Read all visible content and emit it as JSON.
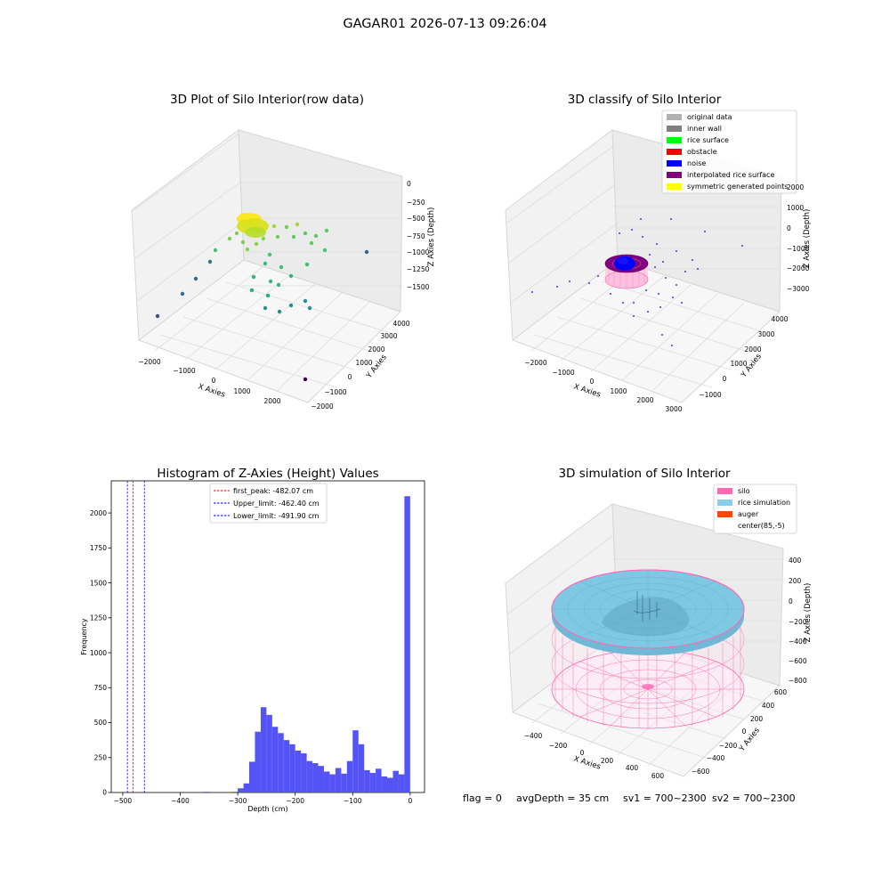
{
  "figure": {
    "suptitle": "GAGAR01 2026-07-13 09:26:04",
    "status": {
      "flag": "flag = 0",
      "avg_depth": "avgDepth = 35 cm",
      "sv1": "sv1 = 700~2300",
      "sv2": "sv2 = 700~2300"
    }
  },
  "chart_data": [
    {
      "id": "raw",
      "type": "scatter",
      "title": "3D Plot of Silo Interior(row data)",
      "xlabel": "X Axies",
      "ylabel": "Y Axies",
      "zlabel": "Z Axies (Depth)",
      "x_ticks": [
        "−2000",
        "−1000",
        "0",
        "1000",
        "2000"
      ],
      "y_ticks": [
        "−2000",
        "−1000",
        "0",
        "1000",
        "2000",
        "3000",
        "4000"
      ],
      "z_ticks": [
        "0",
        "−250",
        "−500",
        "−750",
        "−1000",
        "−1250",
        "−1500"
      ],
      "colormap": "viridis",
      "points": [
        {
          "x": -2300,
          "y": -1900,
          "z": -1600
        },
        {
          "x": 2600,
          "y": -2000,
          "z": -1700
        },
        {
          "x": -1700,
          "y": 500,
          "z": -1300
        },
        {
          "x": 2400,
          "y": 3000,
          "z": -900
        },
        {
          "x": 300,
          "y": 1500,
          "z": -1200
        },
        {
          "x": 800,
          "y": 2500,
          "z": -900
        },
        {
          "x": -700,
          "y": 2000,
          "z": -850
        },
        {
          "x": 0,
          "y": 2500,
          "z": -600
        },
        {
          "x": 300,
          "y": 2700,
          "z": -400
        },
        {
          "x": -300,
          "y": 2300,
          "z": -500
        },
        {
          "x": 600,
          "y": 2900,
          "z": -450
        },
        {
          "x": 900,
          "y": 1800,
          "z": -950
        }
      ],
      "cluster_center": {
        "x": -100,
        "y": 2700,
        "z": -500
      }
    },
    {
      "id": "classify",
      "type": "scatter",
      "title": "3D classify of Silo Interior",
      "xlabel": "X Axies",
      "ylabel": "Y Axies",
      "zlabel": "Z Axies (Depth)",
      "x_ticks": [
        "−2000",
        "−1000",
        "0",
        "1000",
        "2000",
        "3000"
      ],
      "y_ticks": [
        "−1000",
        "0",
        "1000",
        "2000",
        "3000",
        "4000"
      ],
      "z_ticks": [
        "2000",
        "1000",
        "0",
        "−1000",
        "−2000",
        "−3000"
      ],
      "legend": [
        {
          "label": "original data",
          "color": "#b0b0b0"
        },
        {
          "label": "inner wall",
          "color": "#808080"
        },
        {
          "label": "rice surface",
          "color": "#00ff00"
        },
        {
          "label": "obstacle",
          "color": "#ff0000"
        },
        {
          "label": "noise",
          "color": "#0000ff"
        },
        {
          "label": "interpolated rice surface",
          "color": "#800080"
        },
        {
          "label": "symmetric generated points",
          "color": "#ffff00"
        }
      ],
      "legend_placement": "upper-right"
    },
    {
      "id": "hist",
      "type": "bar",
      "title": "Histogram of Z-Axies (Height) Values",
      "xlabel": "Depth (cm)",
      "ylabel": "Frequency",
      "xlim": [
        -520,
        25
      ],
      "ylim": [
        0,
        2230
      ],
      "x_ticks": [
        -500,
        -400,
        -300,
        -200,
        -100,
        0
      ],
      "y_ticks": [
        0,
        250,
        500,
        750,
        1000,
        1250,
        1500,
        1750,
        2000
      ],
      "bar_color": "#4b4bf5",
      "bins": [
        {
          "x0": -360,
          "x1": -350,
          "v": 5
        },
        {
          "x0": -310,
          "x1": -300,
          "v": 5
        },
        {
          "x0": -300,
          "x1": -290,
          "v": 30
        },
        {
          "x0": -290,
          "x1": -280,
          "v": 65
        },
        {
          "x0": -280,
          "x1": -270,
          "v": 220
        },
        {
          "x0": -270,
          "x1": -260,
          "v": 435
        },
        {
          "x0": -260,
          "x1": -250,
          "v": 610
        },
        {
          "x0": -250,
          "x1": -240,
          "v": 555
        },
        {
          "x0": -240,
          "x1": -230,
          "v": 470
        },
        {
          "x0": -230,
          "x1": -220,
          "v": 425
        },
        {
          "x0": -220,
          "x1": -210,
          "v": 375
        },
        {
          "x0": -210,
          "x1": -200,
          "v": 345
        },
        {
          "x0": -200,
          "x1": -190,
          "v": 300
        },
        {
          "x0": -190,
          "x1": -180,
          "v": 280
        },
        {
          "x0": -180,
          "x1": -170,
          "v": 225
        },
        {
          "x0": -170,
          "x1": -160,
          "v": 210
        },
        {
          "x0": -160,
          "x1": -150,
          "v": 190
        },
        {
          "x0": -150,
          "x1": -140,
          "v": 150
        },
        {
          "x0": -140,
          "x1": -130,
          "v": 130
        },
        {
          "x0": -130,
          "x1": -120,
          "v": 175
        },
        {
          "x0": -120,
          "x1": -110,
          "v": 135
        },
        {
          "x0": -110,
          "x1": -100,
          "v": 225
        },
        {
          "x0": -100,
          "x1": -90,
          "v": 445
        },
        {
          "x0": -90,
          "x1": -80,
          "v": 345
        },
        {
          "x0": -80,
          "x1": -70,
          "v": 160
        },
        {
          "x0": -70,
          "x1": -60,
          "v": 140
        },
        {
          "x0": -60,
          "x1": -50,
          "v": 170
        },
        {
          "x0": -50,
          "x1": -40,
          "v": 115
        },
        {
          "x0": -40,
          "x1": -30,
          "v": 105
        },
        {
          "x0": -30,
          "x1": -20,
          "v": 155
        },
        {
          "x0": -20,
          "x1": -10,
          "v": 130
        },
        {
          "x0": -10,
          "x1": 0,
          "v": 2120
        }
      ],
      "vlines": [
        {
          "label": "first_peak: -482.07 cm",
          "x": -482.07,
          "color": "#ff0000"
        },
        {
          "label": "Upper_limit: -462.40 cm",
          "x": -462.4,
          "color": "#0000ff"
        },
        {
          "label": "Lower_limit: -491.90 cm",
          "x": -491.9,
          "color": "#0000ff"
        }
      ],
      "legend_placement": "upper-center"
    },
    {
      "id": "sim",
      "type": "surface",
      "title": "3D simulation of Silo Interior",
      "xlabel": "X Axies",
      "ylabel": "Y Axies",
      "zlabel": "Z Axies (Depth)",
      "x_ticks": [
        "−400",
        "−200",
        "0",
        "200",
        "400",
        "600"
      ],
      "y_ticks": [
        "−600",
        "−400",
        "−200",
        "0",
        "200",
        "400",
        "600"
      ],
      "z_ticks": [
        "400",
        "200",
        "0",
        "−200",
        "−400",
        "−600",
        "−800"
      ],
      "legend": [
        {
          "label": "silo",
          "color": "#ff69b4"
        },
        {
          "label": "rice simulation",
          "color": "#87ceeb"
        },
        {
          "label": "auger",
          "color": "#ff4500"
        },
        {
          "label": "center(85,-5)",
          "color": "#ffffff"
        }
      ],
      "legend_placement": "upper-right"
    }
  ]
}
